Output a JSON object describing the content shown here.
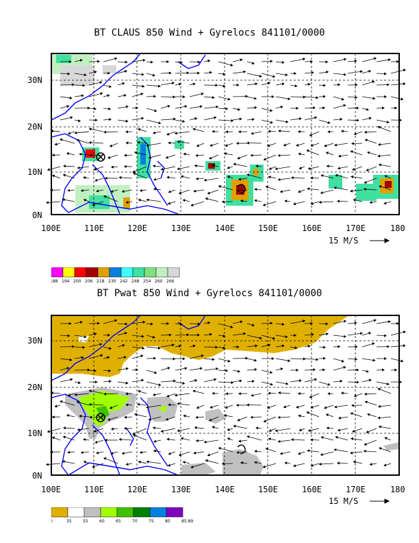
{
  "panel1": {
    "title": "BT CLAUS 850 Wind + Gyrelocs 841101/0000",
    "lat_labels": [
      "30N",
      "20N",
      "10N",
      "0N"
    ],
    "lon_labels": [
      "100E",
      "110E",
      "120E",
      "130E",
      "140E",
      "150E",
      "160E",
      "170E",
      "180"
    ],
    "vector_scale": "15 M/S",
    "legend_values": [
      "188",
      "194",
      "200",
      "206",
      "218",
      "230",
      "242",
      "248",
      "254",
      "260",
      "266"
    ],
    "legend_colors": [
      "#ff00ff",
      "#ffff00",
      "#ff0000",
      "#a00000",
      "#e0a000",
      "#0080e0",
      "#40ffff",
      "#40e0a0",
      "#80e080",
      "#c0f0c0",
      "#d8d8d8"
    ]
  },
  "panel2": {
    "title": "BT Pwat 850 Wind + Gyrelocs 841101/0000",
    "lat_labels": [
      "30N",
      "20N",
      "10N",
      "0N"
    ],
    "lon_labels": [
      "100E",
      "110E",
      "120E",
      "130E",
      "140E",
      "150E",
      "160E",
      "170E",
      "180"
    ],
    "vector_scale": "15 M/S",
    "legend_values": [
      "0",
      "35",
      "55",
      "60",
      "65",
      "70",
      "75",
      "80",
      "85.89"
    ],
    "legend_colors": [
      "#e0b000",
      "#ffffff",
      "#c0c0c0",
      "#a0ff00",
      "#40c000",
      "#008000",
      "#0080e0",
      "#8000c0"
    ]
  },
  "gyre_marker": "⊗",
  "typhoon_symbol": "ᘐ"
}
